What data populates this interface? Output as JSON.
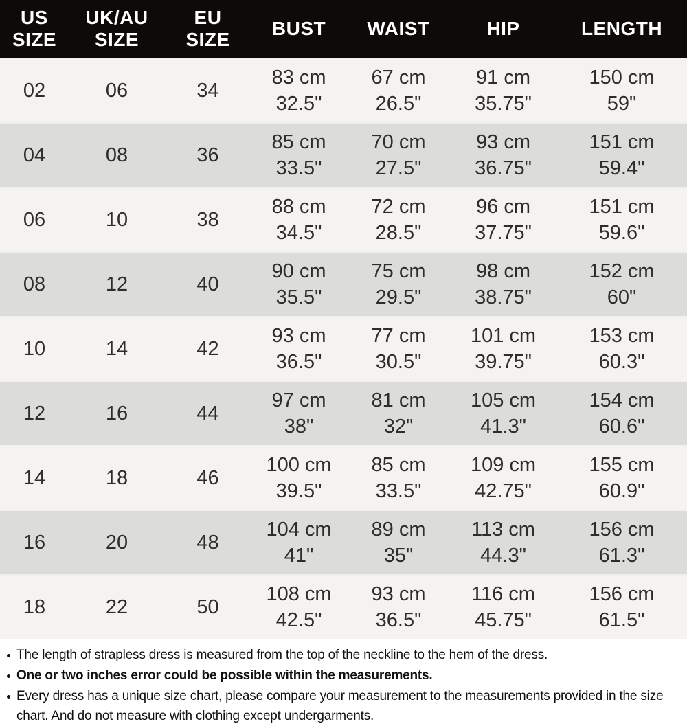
{
  "colors": {
    "header_bg": "#0d0a08",
    "header_text": "#ffffff",
    "row_light_bg": "#f4f3f1",
    "row_dark_bg": "#dcddda",
    "cell_text": "#2e2d2b",
    "notes_text": "#111111"
  },
  "table": {
    "columns": [
      {
        "id": "us-size",
        "header_lines": [
          "US",
          "SIZE"
        ]
      },
      {
        "id": "uk-au-size",
        "header_lines": [
          "UK/AU",
          "SIZE"
        ]
      },
      {
        "id": "eu-size",
        "header_lines": [
          "EU",
          "SIZE"
        ]
      },
      {
        "id": "bust",
        "header_lines": [
          "BUST"
        ]
      },
      {
        "id": "waist",
        "header_lines": [
          "WAIST"
        ]
      },
      {
        "id": "hip",
        "header_lines": [
          "HIP"
        ]
      },
      {
        "id": "length",
        "header_lines": [
          "LENGTH"
        ]
      }
    ],
    "rows": [
      [
        [
          "02"
        ],
        [
          "06"
        ],
        [
          "34"
        ],
        [
          "83 cm",
          "32.5\""
        ],
        [
          "67 cm",
          "26.5\""
        ],
        [
          "91 cm",
          "35.75\""
        ],
        [
          "150 cm",
          "59\""
        ]
      ],
      [
        [
          "04"
        ],
        [
          "08"
        ],
        [
          "36"
        ],
        [
          "85 cm",
          "33.5\""
        ],
        [
          "70 cm",
          "27.5\""
        ],
        [
          "93 cm",
          "36.75\""
        ],
        [
          "151 cm",
          "59.4\""
        ]
      ],
      [
        [
          "06"
        ],
        [
          "10"
        ],
        [
          "38"
        ],
        [
          "88 cm",
          "34.5\""
        ],
        [
          "72 cm",
          "28.5\""
        ],
        [
          "96 cm",
          "37.75\""
        ],
        [
          "151 cm",
          "59.6\""
        ]
      ],
      [
        [
          "08"
        ],
        [
          "12"
        ],
        [
          "40"
        ],
        [
          "90 cm",
          "35.5\""
        ],
        [
          "75 cm",
          "29.5\""
        ],
        [
          "98 cm",
          "38.75\""
        ],
        [
          "152 cm",
          "60\""
        ]
      ],
      [
        [
          "10"
        ],
        [
          "14"
        ],
        [
          "42"
        ],
        [
          "93 cm",
          "36.5\""
        ],
        [
          "77 cm",
          "30.5\""
        ],
        [
          "101 cm",
          "39.75\""
        ],
        [
          "153 cm",
          "60.3\""
        ]
      ],
      [
        [
          "12"
        ],
        [
          "16"
        ],
        [
          "44"
        ],
        [
          "97 cm",
          "38\""
        ],
        [
          "81 cm",
          "32\""
        ],
        [
          "105 cm",
          "41.3\""
        ],
        [
          "154 cm",
          "60.6\""
        ]
      ],
      [
        [
          "14"
        ],
        [
          "18"
        ],
        [
          "46"
        ],
        [
          "100 cm",
          "39.5\""
        ],
        [
          "85 cm",
          "33.5\""
        ],
        [
          "109 cm",
          "42.75\""
        ],
        [
          "155 cm",
          "60.9\""
        ]
      ],
      [
        [
          "16"
        ],
        [
          "20"
        ],
        [
          "48"
        ],
        [
          "104 cm",
          "41\""
        ],
        [
          "89 cm",
          "35\""
        ],
        [
          "113 cm",
          "44.3\""
        ],
        [
          "156 cm",
          "61.3\""
        ]
      ],
      [
        [
          "18"
        ],
        [
          "22"
        ],
        [
          "50"
        ],
        [
          "108 cm",
          "42.5\""
        ],
        [
          "93 cm",
          "36.5\""
        ],
        [
          "116 cm",
          "45.75\""
        ],
        [
          "156 cm",
          "61.5\""
        ]
      ]
    ]
  },
  "notes": [
    {
      "bold": false,
      "text": "The length of strapless dress is measured from the top of the neckline to the hem of the dress."
    },
    {
      "bold": true,
      "text": "One or two inches error could be possible within the measurements."
    },
    {
      "bold": false,
      "text": "Every dress has a unique size chart, please compare your measurement to the measurements provided in the size chart. And do not measure with clothing except undergarments."
    }
  ]
}
